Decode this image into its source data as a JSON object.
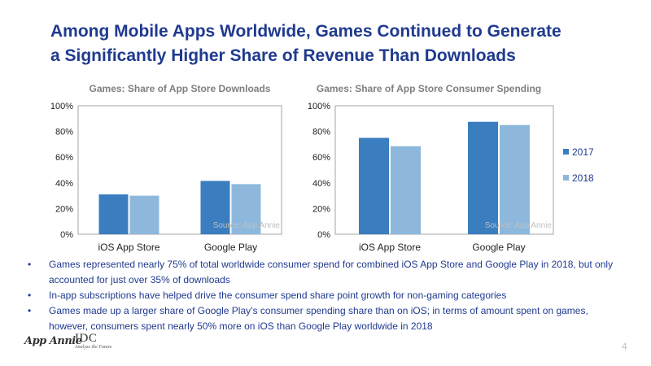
{
  "title": {
    "line1": "Among Mobile Apps Worldwide, Games Continued to Generate",
    "line2": "a Significantly Higher Share of Revenue Than Downloads"
  },
  "chart_data": [
    {
      "type": "bar",
      "title": "Games: Share of App Store Downloads",
      "categories": [
        "iOS App Store",
        "Google Play"
      ],
      "series": [
        {
          "name": "2017",
          "values": [
            31,
            41.5
          ],
          "color": "#3a7ebf"
        },
        {
          "name": "2018",
          "values": [
            30,
            39
          ],
          "color": "#8db8dc"
        }
      ],
      "ylim": [
        0,
        100
      ],
      "yticks": [
        "0%",
        "20%",
        "40%",
        "60%",
        "80%",
        "100%"
      ],
      "source": "Source: App Annie"
    },
    {
      "type": "bar",
      "title": "Games: Share of App Store Consumer Spending",
      "categories": [
        "iOS App Store",
        "Google Play"
      ],
      "series": [
        {
          "name": "2017",
          "values": [
            75,
            87.5
          ],
          "color": "#3a7ebf"
        },
        {
          "name": "2018",
          "values": [
            68.5,
            85
          ],
          "color": "#8db8dc"
        }
      ],
      "ylim": [
        0,
        100
      ],
      "yticks": [
        "0%",
        "20%",
        "40%",
        "60%",
        "80%",
        "100%"
      ],
      "source": "Source: App Annie"
    }
  ],
  "legend": [
    {
      "label": "2017",
      "color": "#3a7ebf"
    },
    {
      "label": "2018",
      "color": "#8db8dc"
    }
  ],
  "bullets": [
    "Games represented nearly 75% of total worldwide consumer spend for combined iOS App Store and Google Play in 2018, but only accounted for just over 35% of downloads",
    "In-app subscriptions have helped drive the consumer spend share point growth for non-gaming categories",
    "Games made up a larger share of Google Play’s consumer spending share than on iOS; in terms of amount spent on games, however, consumers spent nearly 50% more on iOS than Google Play worldwide in 2018"
  ],
  "footer": {
    "logo_app_annie": "App Annie",
    "logo_idc": "IDC",
    "logo_idc_tagline": "Analyze the Future",
    "page_number": "4"
  }
}
